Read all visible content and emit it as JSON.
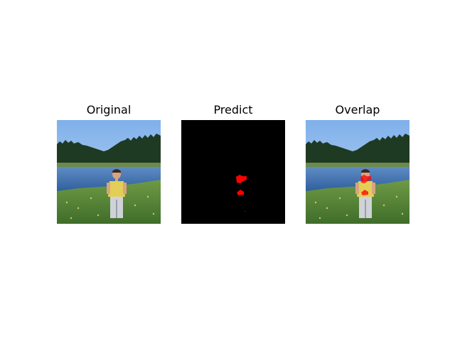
{
  "figure": {
    "panels": [
      {
        "title": "Original"
      },
      {
        "title": "Predict"
      },
      {
        "title": "Overlap"
      }
    ]
  },
  "colors": {
    "sky": "#8fb8ea",
    "sky_horizon": "#c9dcf3",
    "tree_line": "#1f3a22",
    "lake": "#3d6ca8",
    "lake_far": "#5b86bd",
    "shore": "#6d8a4a",
    "grass": "#4f7a34",
    "mask_background": "#000000",
    "mask_region": "#ff0000",
    "shirt": "#e3cf57",
    "skin": "#d9a37f"
  }
}
